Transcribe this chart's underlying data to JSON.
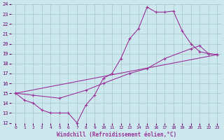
{
  "xlabel": "Windchill (Refroidissement éolien,°C)",
  "background_color": "#cce8ee",
  "grid_color": "#aacccc",
  "line_color": "#993399",
  "xlim": [
    -0.5,
    23.5
  ],
  "ylim": [
    12,
    24
  ],
  "xticks": [
    0,
    1,
    2,
    3,
    4,
    5,
    6,
    7,
    8,
    9,
    10,
    11,
    12,
    13,
    14,
    15,
    16,
    17,
    18,
    19,
    20,
    21,
    22,
    23
  ],
  "yticks": [
    12,
    13,
    14,
    15,
    16,
    17,
    18,
    19,
    20,
    21,
    22,
    23,
    24
  ],
  "line1_x": [
    0,
    1,
    2,
    3,
    4,
    5,
    6,
    7,
    8,
    9,
    10,
    11,
    12,
    13,
    14,
    15,
    16,
    17,
    18,
    19,
    20,
    21,
    22,
    23
  ],
  "line1_y": [
    15.0,
    14.3,
    14.0,
    13.3,
    13.0,
    13.0,
    13.0,
    12.0,
    13.8,
    14.8,
    16.5,
    17.0,
    18.5,
    20.5,
    21.5,
    23.7,
    23.2,
    23.2,
    23.3,
    21.3,
    20.0,
    19.2,
    19.0,
    18.9
  ],
  "line2_x": [
    0,
    2,
    5,
    8,
    10,
    13,
    15,
    17,
    20,
    21,
    22,
    23
  ],
  "line2_y": [
    15.0,
    14.8,
    14.5,
    15.3,
    16.0,
    17.0,
    17.5,
    18.5,
    19.5,
    19.8,
    19.0,
    18.9
  ],
  "line3_x": [
    0,
    23
  ],
  "line3_y": [
    15.0,
    18.9
  ]
}
